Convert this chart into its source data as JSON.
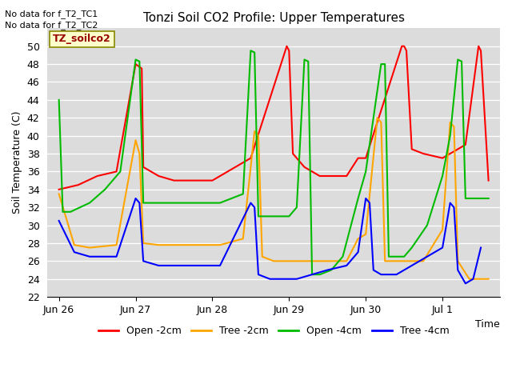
{
  "title": "Tonzi Soil CO2 Profile: Upper Temperatures",
  "ylabel": "Soil Temperature (C)",
  "xlabel": "Time",
  "ylim": [
    22,
    52
  ],
  "yticks": [
    22,
    24,
    26,
    28,
    30,
    32,
    34,
    36,
    38,
    40,
    42,
    44,
    46,
    48,
    50
  ],
  "background_color": "#dcdcdc",
  "annotations": [
    "No data for f_T2_TC1",
    "No data for f_T2_TC2"
  ],
  "legend_label": "TZ_soilco2",
  "series": {
    "open_2cm": {
      "color": "#ff0000",
      "label": "Open -2cm",
      "data": [
        [
          0.0,
          34.0
        ],
        [
          0.25,
          34.5
        ],
        [
          0.5,
          35.5
        ],
        [
          0.75,
          36.0
        ],
        [
          1.0,
          48.0
        ],
        [
          1.08,
          47.5
        ],
        [
          1.1,
          36.5
        ],
        [
          1.3,
          35.5
        ],
        [
          1.5,
          35.0
        ],
        [
          1.75,
          35.0
        ],
        [
          2.0,
          35.0
        ],
        [
          2.1,
          35.5
        ],
        [
          2.3,
          36.5
        ],
        [
          2.5,
          37.5
        ],
        [
          2.97,
          50.0
        ],
        [
          3.0,
          49.5
        ],
        [
          3.05,
          38.0
        ],
        [
          3.2,
          36.5
        ],
        [
          3.4,
          35.5
        ],
        [
          3.6,
          35.5
        ],
        [
          3.75,
          35.5
        ],
        [
          3.9,
          37.5
        ],
        [
          4.0,
          37.5
        ],
        [
          4.47,
          50.0
        ],
        [
          4.5,
          50.0
        ],
        [
          4.53,
          49.5
        ],
        [
          4.6,
          38.5
        ],
        [
          4.75,
          38.0
        ],
        [
          5.0,
          37.5
        ],
        [
          5.0,
          37.5
        ],
        [
          5.3,
          39.0
        ],
        [
          5.47,
          50.0
        ],
        [
          5.5,
          49.5
        ],
        [
          5.6,
          35.0
        ]
      ]
    },
    "tree_2cm": {
      "color": "#ffa500",
      "label": "Tree -2cm",
      "data": [
        [
          0.0,
          33.5
        ],
        [
          0.2,
          27.8
        ],
        [
          0.4,
          27.5
        ],
        [
          0.75,
          27.8
        ],
        [
          1.0,
          39.5
        ],
        [
          1.05,
          38.0
        ],
        [
          1.1,
          28.0
        ],
        [
          1.3,
          27.8
        ],
        [
          1.5,
          27.8
        ],
        [
          1.75,
          27.8
        ],
        [
          2.0,
          27.8
        ],
        [
          2.1,
          27.8
        ],
        [
          2.4,
          28.5
        ],
        [
          2.55,
          40.5
        ],
        [
          2.6,
          40.0
        ],
        [
          2.65,
          26.5
        ],
        [
          2.8,
          26.0
        ],
        [
          3.0,
          26.0
        ],
        [
          3.1,
          26.0
        ],
        [
          3.3,
          26.0
        ],
        [
          3.5,
          26.0
        ],
        [
          3.75,
          26.0
        ],
        [
          3.9,
          28.5
        ],
        [
          4.0,
          29.0
        ],
        [
          4.15,
          42.0
        ],
        [
          4.2,
          41.5
        ],
        [
          4.25,
          26.0
        ],
        [
          4.4,
          26.0
        ],
        [
          4.5,
          26.0
        ],
        [
          4.6,
          26.0
        ],
        [
          4.75,
          26.0
        ],
        [
          5.0,
          29.5
        ],
        [
          5.1,
          41.5
        ],
        [
          5.15,
          41.0
        ],
        [
          5.2,
          26.0
        ],
        [
          5.35,
          24.0
        ],
        [
          5.5,
          24.0
        ],
        [
          5.6,
          24.0
        ]
      ]
    },
    "open_4cm": {
      "color": "#00bb00",
      "label": "Open -4cm",
      "data": [
        [
          0.0,
          44.0
        ],
        [
          0.05,
          31.5
        ],
        [
          0.15,
          31.5
        ],
        [
          0.4,
          32.5
        ],
        [
          0.6,
          34.0
        ],
        [
          0.8,
          36.0
        ],
        [
          1.0,
          48.5
        ],
        [
          1.05,
          48.3
        ],
        [
          1.1,
          32.5
        ],
        [
          1.3,
          32.5
        ],
        [
          1.5,
          32.5
        ],
        [
          1.75,
          32.5
        ],
        [
          2.0,
          32.5
        ],
        [
          2.1,
          32.5
        ],
        [
          2.4,
          33.5
        ],
        [
          2.5,
          49.5
        ],
        [
          2.55,
          49.3
        ],
        [
          2.6,
          31.0
        ],
        [
          2.75,
          31.0
        ],
        [
          2.9,
          31.0
        ],
        [
          3.0,
          31.0
        ],
        [
          3.1,
          32.0
        ],
        [
          3.2,
          48.5
        ],
        [
          3.25,
          48.3
        ],
        [
          3.3,
          24.5
        ],
        [
          3.4,
          24.5
        ],
        [
          3.55,
          25.0
        ],
        [
          3.7,
          26.5
        ],
        [
          3.9,
          33.0
        ],
        [
          4.0,
          36.0
        ],
        [
          4.1,
          42.0
        ],
        [
          4.2,
          48.0
        ],
        [
          4.25,
          48.0
        ],
        [
          4.3,
          26.5
        ],
        [
          4.5,
          26.5
        ],
        [
          4.6,
          27.5
        ],
        [
          4.8,
          30.0
        ],
        [
          5.0,
          35.5
        ],
        [
          5.1,
          40.0
        ],
        [
          5.2,
          48.5
        ],
        [
          5.25,
          48.3
        ],
        [
          5.3,
          33.0
        ],
        [
          5.5,
          33.0
        ],
        [
          5.6,
          33.0
        ]
      ]
    },
    "tree_4cm": {
      "color": "#0000ff",
      "label": "Tree -4cm",
      "data": [
        [
          0.0,
          30.5
        ],
        [
          0.2,
          27.0
        ],
        [
          0.4,
          26.5
        ],
        [
          0.75,
          26.5
        ],
        [
          1.0,
          33.0
        ],
        [
          1.05,
          32.5
        ],
        [
          1.1,
          26.0
        ],
        [
          1.3,
          25.5
        ],
        [
          1.5,
          25.5
        ],
        [
          1.75,
          25.5
        ],
        [
          2.0,
          25.5
        ],
        [
          2.1,
          25.5
        ],
        [
          2.5,
          32.5
        ],
        [
          2.55,
          32.0
        ],
        [
          2.6,
          24.5
        ],
        [
          2.75,
          24.0
        ],
        [
          2.9,
          24.0
        ],
        [
          3.0,
          24.0
        ],
        [
          3.1,
          24.0
        ],
        [
          3.3,
          24.5
        ],
        [
          3.5,
          25.0
        ],
        [
          3.75,
          25.5
        ],
        [
          3.9,
          27.0
        ],
        [
          4.0,
          33.0
        ],
        [
          4.05,
          32.5
        ],
        [
          4.1,
          25.0
        ],
        [
          4.2,
          24.5
        ],
        [
          4.4,
          24.5
        ],
        [
          4.5,
          25.0
        ],
        [
          4.6,
          25.5
        ],
        [
          4.8,
          26.5
        ],
        [
          5.0,
          27.5
        ],
        [
          5.1,
          32.5
        ],
        [
          5.15,
          32.0
        ],
        [
          5.2,
          25.0
        ],
        [
          5.3,
          23.5
        ],
        [
          5.4,
          24.0
        ],
        [
          5.5,
          27.5
        ]
      ]
    }
  },
  "xtick_positions": [
    0,
    1,
    2,
    3,
    4,
    5
  ],
  "xtick_labels": [
    "Jun 26",
    "Jun 27",
    "Jun 28",
    "Jun 29",
    "Jun 30",
    "Jul 1"
  ]
}
